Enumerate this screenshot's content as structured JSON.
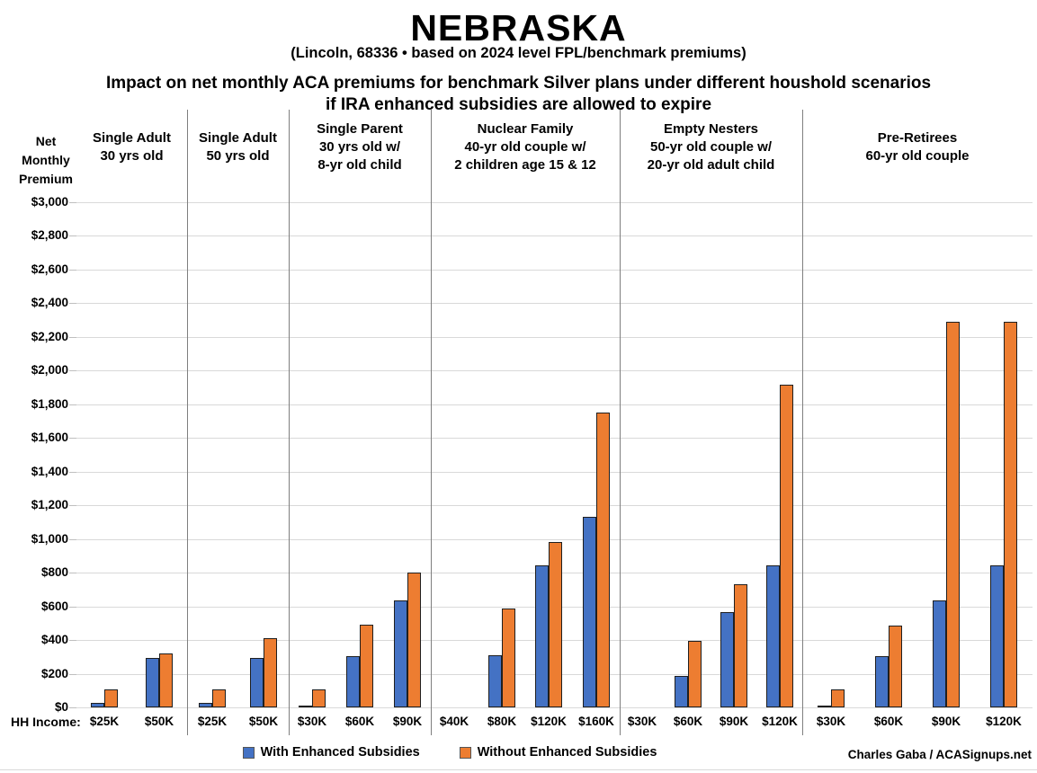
{
  "title": "NEBRASKA",
  "subtitle": "(Lincoln, 68336 • based on 2024 level FPL/benchmark premiums)",
  "heading_line1": "Impact on net monthly ACA premiums for benchmark Silver plans under different houshold scenarios",
  "heading_line2": "if IRA enhanced subsidies are allowed to expire",
  "y_axis_title_lines": [
    "Net",
    "Monthly",
    "Premium"
  ],
  "x_axis_prefix": "HH Income:",
  "legend": [
    {
      "label": "With Enhanced Subsidies",
      "color": "#4472C4"
    },
    {
      "label": "Without Enhanced Subsidies",
      "color": "#ED7D31"
    }
  ],
  "credit": "Charles Gaba / ACASignups.net",
  "colors": {
    "with_enhanced": "#4472C4",
    "without_enhanced": "#ED7D31",
    "bar_outline": "#1f1f1f",
    "gridline": "#d9d9d9",
    "separator": "#7f7f7f"
  },
  "chart_data": {
    "type": "bar",
    "title": "Impact on net monthly ACA premiums for benchmark Silver plans under different houshold scenarios if IRA enhanced subsidies are allowed to expire",
    "state": "NEBRASKA",
    "location_note": "(Lincoln, 68336 • based on 2024 level FPL/benchmark premiums)",
    "ylabel": "Net Monthly Premium",
    "xlabel": "HH Income:",
    "ylim": [
      0,
      3000
    ],
    "ytick_step": 200,
    "ytick_format": "$#,##0",
    "grid": true,
    "legend_position": "bottom",
    "series_names": [
      "With Enhanced Subsidies",
      "Without Enhanced Subsidies"
    ],
    "groups": [
      {
        "header": [
          "Single Adult",
          "30 yrs old"
        ],
        "incomes": [
          "$25K",
          "$50K"
        ],
        "with_enhanced": [
          25,
          295
        ],
        "without_enhanced": [
          105,
          320
        ]
      },
      {
        "header": [
          "Single Adult",
          "50 yrs old"
        ],
        "incomes": [
          "$25K",
          "$50K"
        ],
        "with_enhanced": [
          25,
          295
        ],
        "without_enhanced": [
          105,
          410
        ]
      },
      {
        "header": [
          "Single Parent",
          "30 yrs old w/",
          "8-yr old child"
        ],
        "incomes": [
          "$30K",
          "$60K",
          "$90K"
        ],
        "with_enhanced": [
          10,
          305,
          635
        ],
        "without_enhanced": [
          105,
          490,
          800
        ]
      },
      {
        "header": [
          "Nuclear Family",
          "40-yr old couple w/",
          "2 children age 15 & 12"
        ],
        "incomes": [
          "$40K",
          "$80K",
          "$120K",
          "$160K"
        ],
        "with_enhanced": [
          0,
          310,
          845,
          1130
        ],
        "without_enhanced": [
          0,
          585,
          980,
          1750
        ]
      },
      {
        "header": [
          "Empty Nesters",
          "50-yr old couple w/",
          "20-yr old adult child"
        ],
        "incomes": [
          "$30K",
          "$60K",
          "$90K",
          "$120K"
        ],
        "with_enhanced": [
          0,
          185,
          565,
          845
        ],
        "without_enhanced": [
          0,
          395,
          730,
          1915
        ]
      },
      {
        "header": [
          "Pre-Retirees",
          "60-yr old couple"
        ],
        "incomes": [
          "$30K",
          "$60K",
          "$90K",
          "$120K"
        ],
        "with_enhanced": [
          5,
          305,
          635,
          845
        ],
        "without_enhanced": [
          105,
          485,
          2290,
          2290
        ]
      }
    ]
  }
}
